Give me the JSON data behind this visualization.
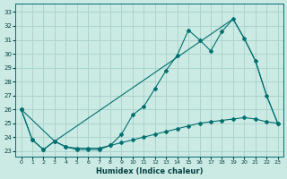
{
  "xlabel": "Humidex (Indice chaleur)",
  "bg_color": "#cceae4",
  "grid_color": "#aad4cc",
  "line_color": "#007070",
  "xlim": [
    -0.5,
    23.5
  ],
  "ylim": [
    22.6,
    33.6
  ],
  "xticks": [
    0,
    1,
    2,
    3,
    4,
    5,
    6,
    7,
    8,
    9,
    10,
    11,
    12,
    13,
    14,
    15,
    16,
    17,
    18,
    19,
    20,
    21,
    22,
    23
  ],
  "yticks": [
    23,
    24,
    25,
    26,
    27,
    28,
    29,
    30,
    31,
    32,
    33
  ],
  "series1_x": [
    0,
    1,
    2,
    3,
    4,
    5,
    6,
    7,
    8,
    9,
    10,
    11,
    12,
    13,
    14,
    15,
    16,
    17,
    18,
    19,
    20,
    21,
    22,
    23
  ],
  "series1_y": [
    26.0,
    23.8,
    23.1,
    23.7,
    23.3,
    23.1,
    23.1,
    23.1,
    23.4,
    24.2,
    25.6,
    26.2,
    27.5,
    28.8,
    29.9,
    31.7,
    31.0,
    30.2,
    31.6,
    32.5,
    31.1,
    29.5,
    27.0,
    25.0
  ],
  "series2_x": [
    0,
    3,
    19,
    20,
    21,
    22,
    23
  ],
  "series2_y": [
    26.0,
    23.7,
    32.5,
    31.1,
    29.5,
    27.0,
    25.0
  ],
  "series3_x": [
    0,
    1,
    2,
    3,
    4,
    5,
    6,
    7,
    8,
    9,
    10,
    11,
    12,
    13,
    14,
    15,
    16,
    17,
    18,
    19,
    20,
    21,
    22,
    23
  ],
  "series3_y": [
    26.0,
    23.8,
    23.1,
    23.7,
    23.3,
    23.2,
    23.2,
    23.2,
    23.4,
    23.6,
    23.8,
    24.0,
    24.2,
    24.4,
    24.6,
    24.8,
    25.0,
    25.1,
    25.2,
    25.3,
    25.4,
    25.3,
    25.1,
    25.0
  ]
}
